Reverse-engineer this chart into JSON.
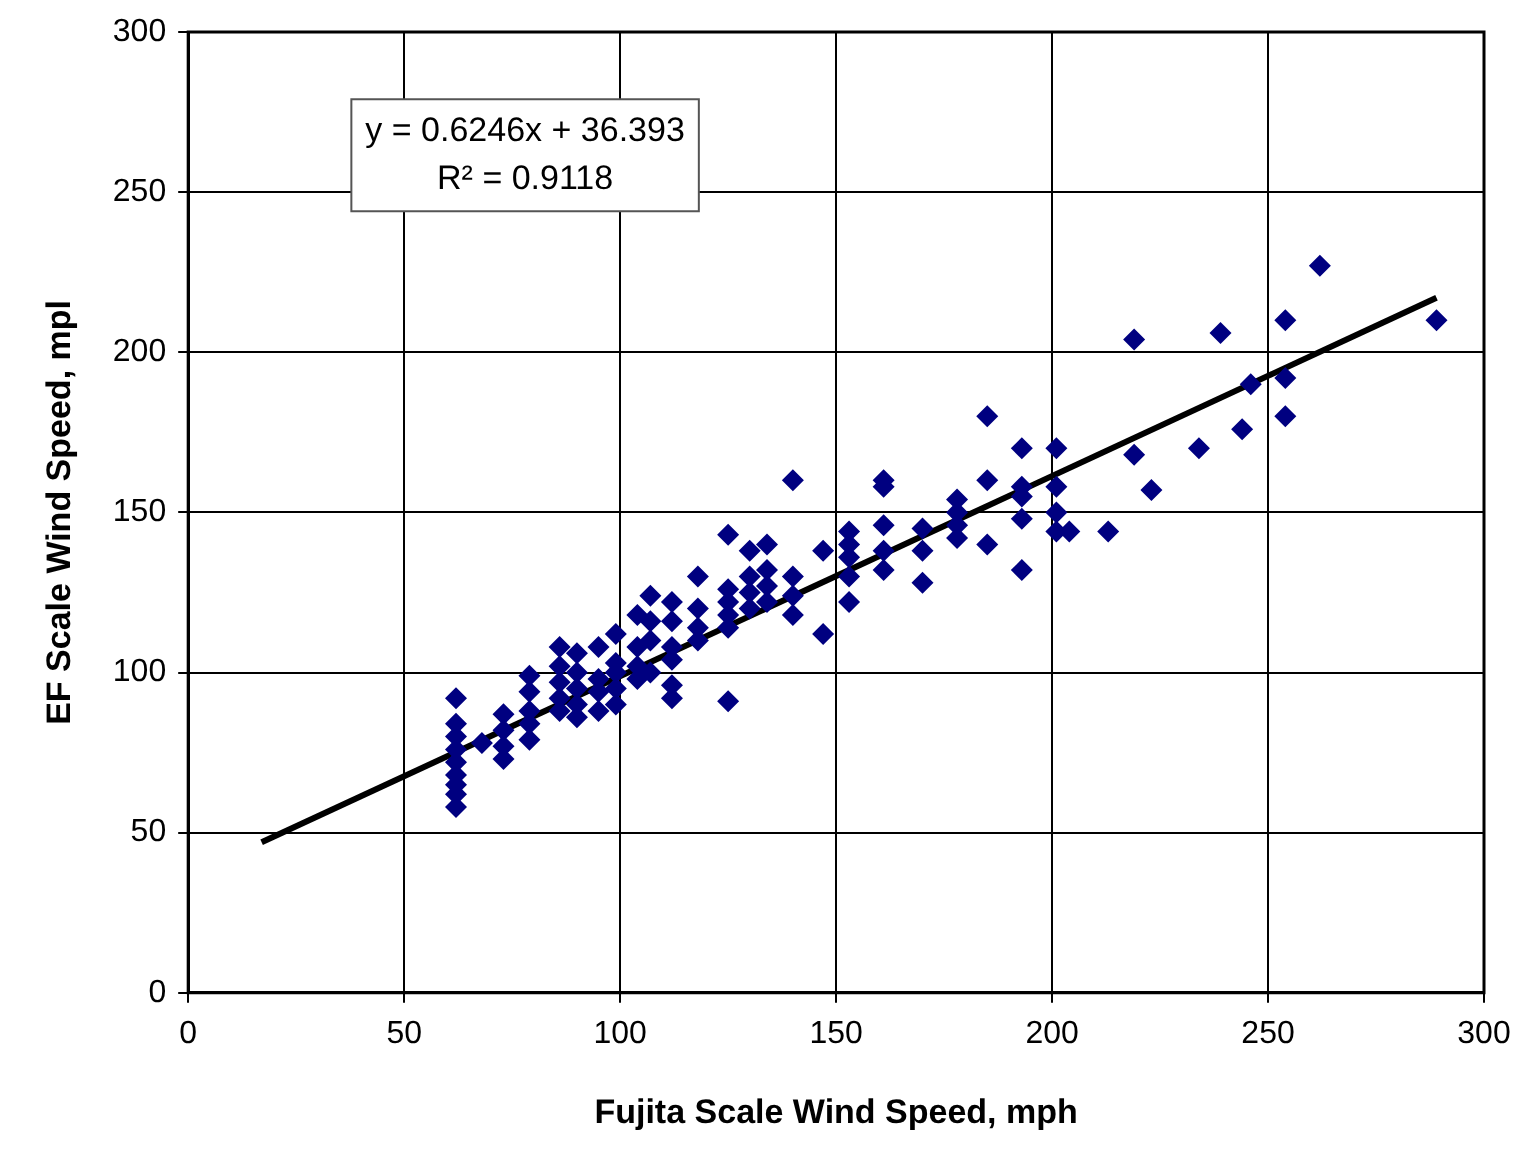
{
  "chart_data": {
    "type": "scatter",
    "xlabel": "Fujita Scale Wind Speed, mph",
    "ylabel": "EF Scale Wind Speed, mpl",
    "xlim": [
      0,
      300
    ],
    "xticks": [
      0,
      50,
      100,
      150,
      200,
      250,
      300
    ],
    "ylim": [
      0,
      300
    ],
    "yticks": [
      0,
      50,
      100,
      150,
      200,
      250,
      300
    ],
    "grid": true,
    "legend": false,
    "marker": "diamond",
    "annotations": [
      "y = 0.6246x + 36.393",
      "R² = 0.9118"
    ],
    "series": [
      {
        "color": "#000080",
        "x": [
          62,
          62,
          62,
          62,
          62,
          62,
          62,
          62,
          62,
          68,
          73,
          73,
          73,
          73,
          79,
          79,
          79,
          79,
          79,
          86,
          86,
          86,
          86,
          86,
          90,
          90,
          90,
          90,
          90,
          95,
          95,
          95,
          95,
          99,
          99,
          99,
          99,
          99,
          104,
          104,
          104,
          104,
          107,
          107,
          107,
          107,
          112,
          112,
          112,
          112,
          112,
          112,
          118,
          118,
          118,
          118,
          125,
          125,
          125,
          125,
          125,
          125,
          130,
          130,
          130,
          130,
          134,
          134,
          134,
          134,
          140,
          140,
          140,
          140,
          147,
          147,
          153,
          153,
          153,
          153,
          153,
          161,
          161,
          161,
          161,
          161,
          170,
          170,
          170,
          178,
          178,
          178,
          178,
          185,
          185,
          185,
          193,
          193,
          193,
          193,
          193,
          201,
          201,
          201,
          201,
          204,
          213,
          219,
          219,
          223,
          234,
          239,
          244,
          246,
          254,
          254,
          254,
          262,
          289
        ],
        "values": [
          58,
          62,
          65,
          68,
          72,
          76,
          80,
          84,
          92,
          78,
          73,
          77,
          82,
          87,
          79,
          84,
          88,
          94,
          99,
          88,
          92,
          97,
          102,
          108,
          86,
          90,
          95,
          100,
          106,
          88,
          94,
          98,
          108,
          90,
          95,
          100,
          103,
          112,
          98,
          102,
          108,
          118,
          100,
          110,
          116,
          124,
          92,
          96,
          104,
          108,
          116,
          122,
          110,
          114,
          120,
          130,
          91,
          114,
          118,
          122,
          126,
          143,
          120,
          125,
          130,
          138,
          122,
          127,
          132,
          140,
          118,
          124,
          130,
          160,
          112,
          138,
          122,
          130,
          136,
          140,
          144,
          132,
          138,
          146,
          158,
          160,
          128,
          138,
          145,
          142,
          146,
          150,
          154,
          140,
          160,
          180,
          132,
          148,
          155,
          158,
          170,
          144,
          150,
          158,
          170,
          144,
          144,
          168,
          204,
          157,
          170,
          206,
          176,
          190,
          180,
          192,
          210,
          227,
          210
        ]
      },
      {
        "type": "line",
        "color": "#000000",
        "marker": "none",
        "x": [
          17,
          289
        ],
        "values": [
          47,
          217
        ]
      }
    ]
  }
}
